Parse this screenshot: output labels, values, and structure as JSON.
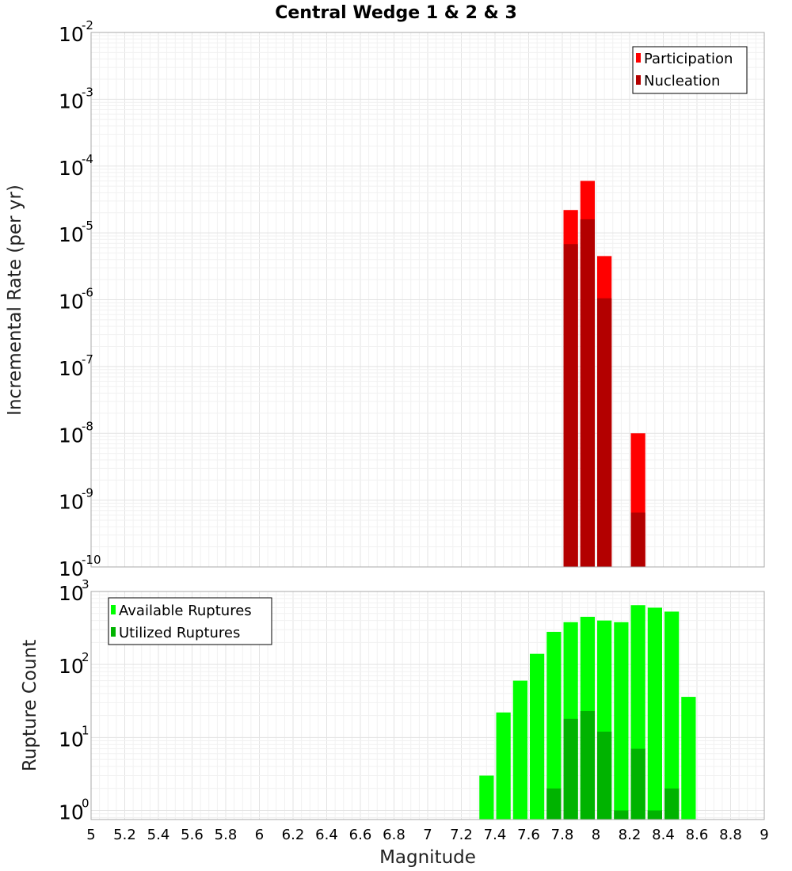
{
  "chart_data": [
    {
      "type": "bar",
      "title": "Central Wedge 1 & 2 & 3",
      "xlabel": "Magnitude",
      "ylabel": "Incremental Rate (per yr)",
      "yscale": "log",
      "xlim": [
        5,
        9
      ],
      "ylim": [
        1e-10,
        0.01
      ],
      "ytick_base": "10",
      "ytick_exponents": [
        "-2",
        "-3",
        "-4",
        "-5",
        "-6",
        "-7",
        "-8",
        "-9",
        "-10"
      ],
      "bar_width": 0.1,
      "legend_position": "top-right",
      "series": [
        {
          "name": "Participation",
          "color": "#ff0000",
          "x": [
            7.85,
            7.95,
            8.05,
            8.25
          ],
          "values": [
            2.2e-05,
            6e-05,
            4.5e-06,
            1e-08
          ]
        },
        {
          "name": "Nucleation",
          "color": "#b30000",
          "x": [
            7.85,
            7.95,
            8.05,
            8.25
          ],
          "values": [
            6.8e-06,
            1.6e-05,
            1.05e-06,
            6.5e-10
          ]
        }
      ]
    },
    {
      "type": "bar",
      "xlabel": "Magnitude",
      "ylabel": "Rupture Count",
      "yscale": "log",
      "xlim": [
        5,
        9
      ],
      "ylim": [
        0.75,
        1000
      ],
      "ytick_base": "10",
      "ytick_exponents": [
        "3",
        "2",
        "1",
        "0"
      ],
      "x_tick_labels": [
        "5",
        "5.2",
        "5.4",
        "5.6",
        "5.8",
        "6",
        "6.2",
        "6.4",
        "6.6",
        "6.8",
        "7",
        "7.2",
        "7.4",
        "7.6",
        "7.8",
        "8",
        "8.2",
        "8.4",
        "8.6",
        "8.8",
        "9"
      ],
      "bar_width": 0.1,
      "legend_position": "top-left",
      "series": [
        {
          "name": "Available Ruptures",
          "color": "#00ff00",
          "x": [
            7.35,
            7.45,
            7.55,
            7.65,
            7.75,
            7.85,
            7.95,
            8.05,
            8.15,
            8.25,
            8.35,
            8.45,
            8.55
          ],
          "values": [
            3,
            22,
            60,
            140,
            280,
            380,
            450,
            400,
            380,
            650,
            600,
            530,
            36
          ]
        },
        {
          "name": "Utilized Ruptures",
          "color": "#00b300",
          "x": [
            7.75,
            7.85,
            7.95,
            8.05,
            8.15,
            8.25,
            8.35,
            8.45
          ],
          "values": [
            2,
            18,
            23,
            12,
            1,
            7,
            1,
            2
          ]
        }
      ]
    }
  ]
}
